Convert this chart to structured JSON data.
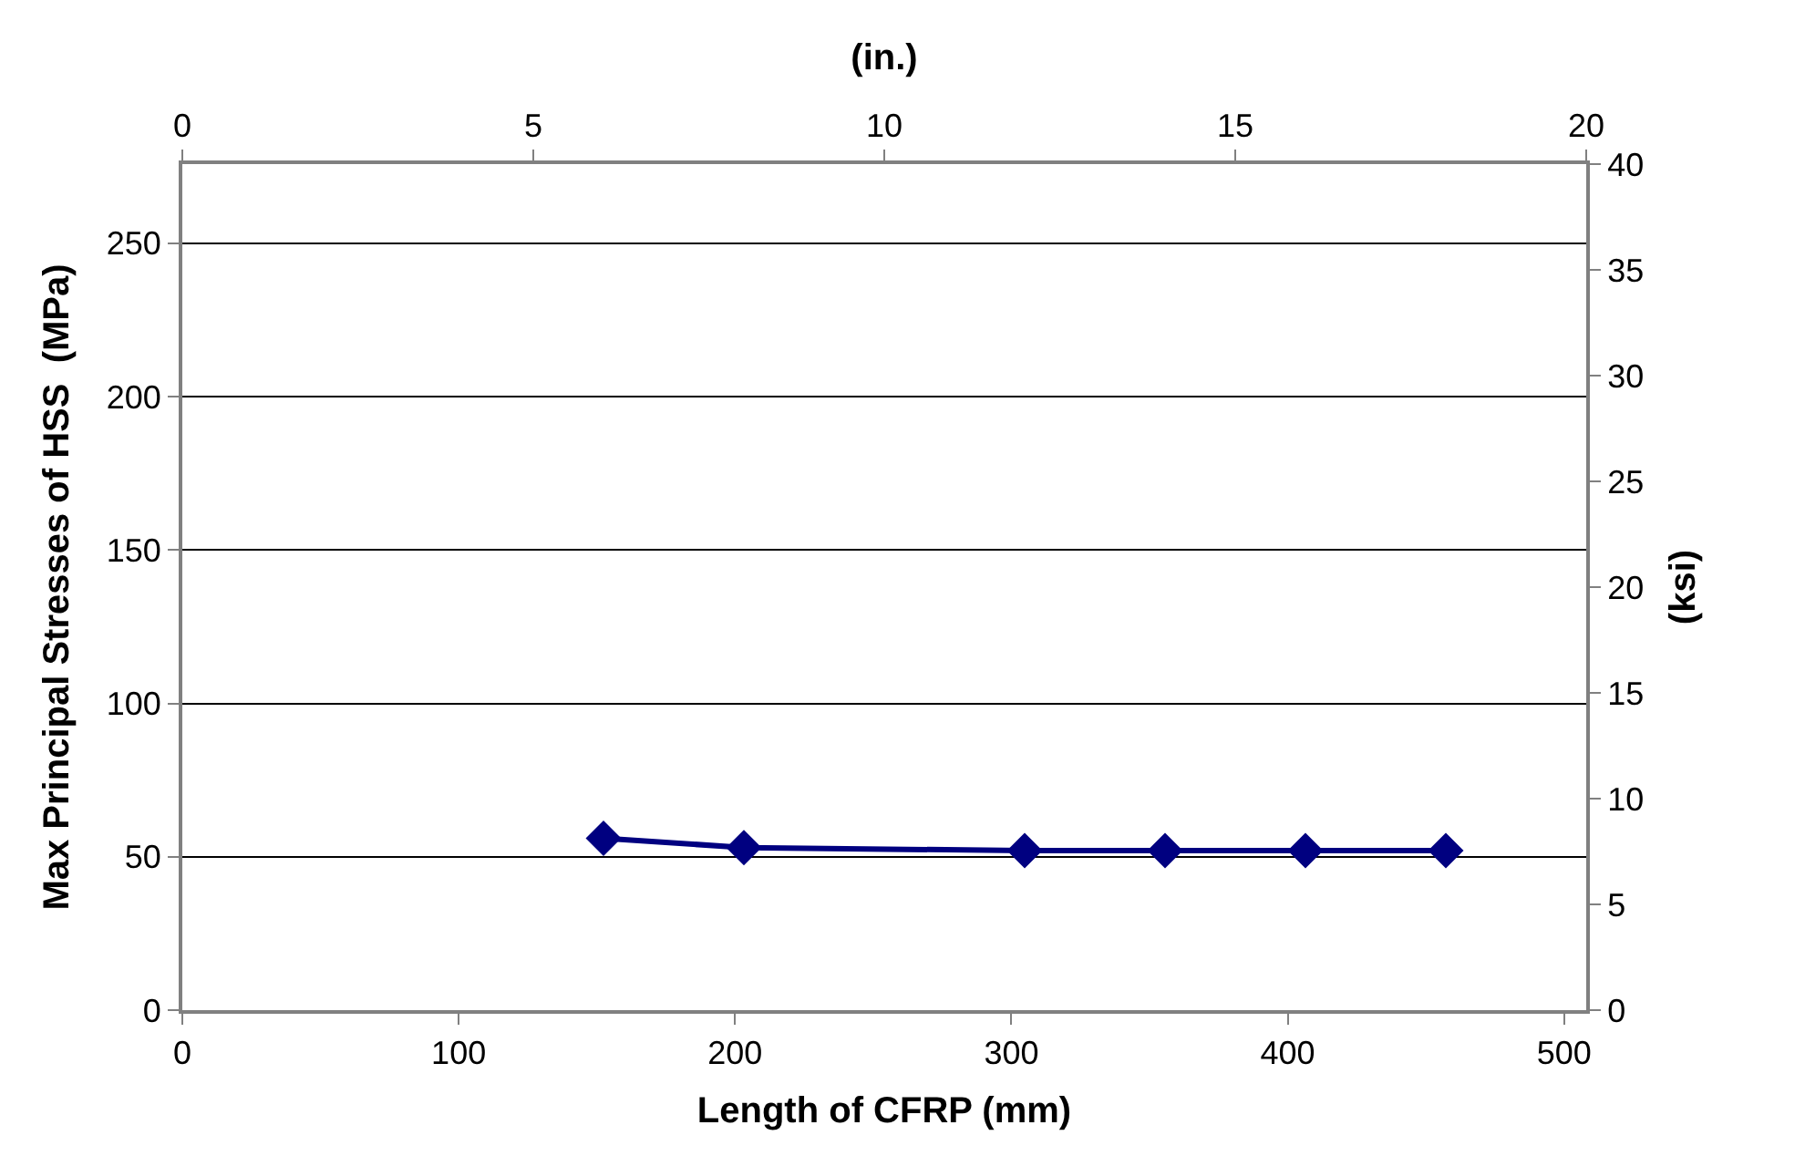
{
  "chart_data": {
    "type": "line",
    "xlabel": "Length of CFRP (mm)",
    "ylabel": "Max Principal Stresses of HSS  (MPa)",
    "x2label": "(in.)",
    "y2label": "(ksi)",
    "x": [
      152.4,
      203.2,
      304.8,
      355.6,
      406.4,
      457.2
    ],
    "series": [
      {
        "color": "#000080",
        "values": [
          56,
          53,
          52,
          52,
          52,
          52
        ]
      }
    ],
    "xlim": [
      0,
      508
    ],
    "xticks": [
      0,
      100,
      200,
      300,
      400,
      500
    ],
    "x2lim": [
      0,
      20
    ],
    "x2ticks": [
      0,
      5,
      10,
      15,
      20
    ],
    "ylim": [
      0,
      275.8
    ],
    "yticks": [
      0,
      50,
      100,
      150,
      200,
      250
    ],
    "y2lim": [
      0,
      40
    ],
    "y2ticks": [
      0,
      5,
      10,
      15,
      20,
      25,
      30,
      35,
      40
    ],
    "grid": "y",
    "marker": "diamond",
    "line_style": "solid"
  }
}
